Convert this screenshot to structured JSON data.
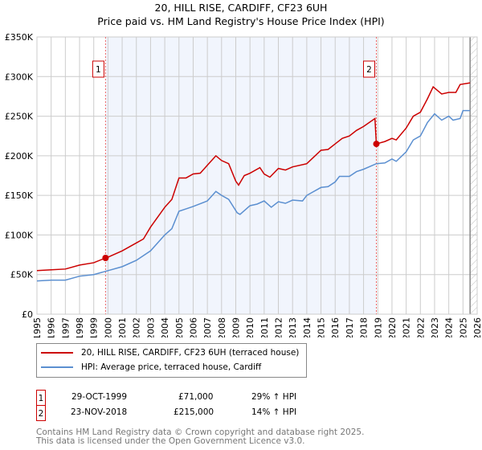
{
  "chart_data": {
    "type": "line",
    "title": "20, HILL RISE, CARDIFF, CF23 6UH",
    "subtitle": "Price paid vs. HM Land Registry's House Price Index (HPI)",
    "xlim": [
      1995,
      2026
    ],
    "ylim": [
      0,
      350000
    ],
    "x_ticks": [
      "1995",
      "1996",
      "1997",
      "1998",
      "1999",
      "2000",
      "2001",
      "2002",
      "2003",
      "2004",
      "2005",
      "2006",
      "2007",
      "2008",
      "2009",
      "2010",
      "2011",
      "2012",
      "2013",
      "2014",
      "2015",
      "2016",
      "2017",
      "2018",
      "2019",
      "2020",
      "2021",
      "2022",
      "2023",
      "2024",
      "2025",
      "2026"
    ],
    "y_ticks": [
      {
        "v": 0,
        "label": "£0"
      },
      {
        "v": 50000,
        "label": "£50K"
      },
      {
        "v": 100000,
        "label": "£100K"
      },
      {
        "v": 150000,
        "label": "£150K"
      },
      {
        "v": 200000,
        "label": "£200K"
      },
      {
        "v": 250000,
        "label": "£250K"
      },
      {
        "v": 300000,
        "label": "£300K"
      },
      {
        "v": 350000,
        "label": "£350K"
      }
    ],
    "grid": true,
    "shaded_range": [
      1999.83,
      2018.9
    ],
    "hatched_from": 2025.5,
    "series": [
      {
        "name": "20, HILL RISE, CARDIFF, CF23 6UH (terraced house)",
        "color": "#cc0000",
        "x": [
          1995,
          1996,
          1997,
          1998,
          1999,
          1999.83,
          2000,
          2001,
          2002,
          2002.5,
          2003,
          2004,
          2004.5,
          2005,
          2005.5,
          2006,
          2006.5,
          2007,
          2007.6,
          2008,
          2008.5,
          2009,
          2009.2,
          2009.6,
          2010,
          2010.7,
          2011,
          2011.4,
          2012,
          2012.5,
          2013,
          2014,
          2015,
          2015.5,
          2016,
          2016.5,
          2017,
          2017.5,
          2018,
          2018.8,
          2018.9,
          2019.5,
          2020,
          2020.3,
          2021,
          2021.5,
          2022,
          2022.5,
          2022.9,
          2023.5,
          2024,
          2024.5,
          2024.8,
          2025.5
        ],
        "y": [
          55000,
          56000,
          57000,
          62000,
          65000,
          71000,
          72000,
          80000,
          90000,
          95000,
          110000,
          135000,
          145000,
          172000,
          172000,
          177000,
          178000,
          188000,
          200000,
          194000,
          190000,
          168000,
          163000,
          175000,
          178000,
          185000,
          177000,
          173000,
          184000,
          182000,
          186000,
          190000,
          207000,
          208000,
          215000,
          222000,
          225000,
          232000,
          237000,
          247000,
          215000,
          218000,
          222000,
          220000,
          235000,
          250000,
          255000,
          272000,
          287000,
          278000,
          280000,
          280000,
          290000,
          292000
        ]
      },
      {
        "name": "HPI: Average price, terraced house, Cardiff",
        "color": "#5b8fd0",
        "x": [
          1995,
          1996,
          1997,
          1998,
          1999,
          2000,
          2001,
          2002,
          2003,
          2004,
          2004.5,
          2005,
          2005.5,
          2006,
          2007,
          2007.6,
          2008,
          2008.5,
          2009.1,
          2009.3,
          2010,
          2010.5,
          2011,
          2011.5,
          2012,
          2012.5,
          2013,
          2013.7,
          2014,
          2015,
          2015.5,
          2016,
          2016.3,
          2017,
          2017.5,
          2018,
          2018.9,
          2019.5,
          2020,
          2020.3,
          2021,
          2021.5,
          2022,
          2022.5,
          2023,
          2023.5,
          2024,
          2024.3,
          2024.8,
          2025,
          2025.5
        ],
        "y": [
          42000,
          43000,
          43000,
          48000,
          50000,
          55000,
          60000,
          68000,
          80000,
          100000,
          108000,
          130000,
          133000,
          136000,
          143000,
          155000,
          150000,
          145000,
          128000,
          126000,
          137000,
          139000,
          143000,
          135000,
          142000,
          140000,
          144000,
          143000,
          150000,
          160000,
          161000,
          167000,
          174000,
          174000,
          180000,
          183000,
          190000,
          191000,
          196000,
          193000,
          205000,
          220000,
          225000,
          242000,
          253000,
          245000,
          250000,
          245000,
          247000,
          257000,
          257000
        ]
      }
    ],
    "sales": [
      {
        "label": "1",
        "x": 1999.83,
        "y": 71000
      },
      {
        "label": "2",
        "x": 2018.9,
        "y": 215000
      }
    ]
  },
  "legend": {
    "items": [
      "20, HILL RISE, CARDIFF, CF23 6UH (terraced house)",
      "HPI: Average price, terraced house, Cardiff"
    ]
  },
  "transactions": [
    {
      "num": "1",
      "date": "29-OCT-1999",
      "price": "£71,000",
      "hpi": "29% ↑ HPI"
    },
    {
      "num": "2",
      "date": "23-NOV-2018",
      "price": "£215,000",
      "hpi": "14% ↑ HPI"
    }
  ],
  "footer": {
    "line1": "Contains HM Land Registry data © Crown copyright and database right 2025.",
    "line2": "This data is licensed under the Open Government Licence v3.0."
  }
}
